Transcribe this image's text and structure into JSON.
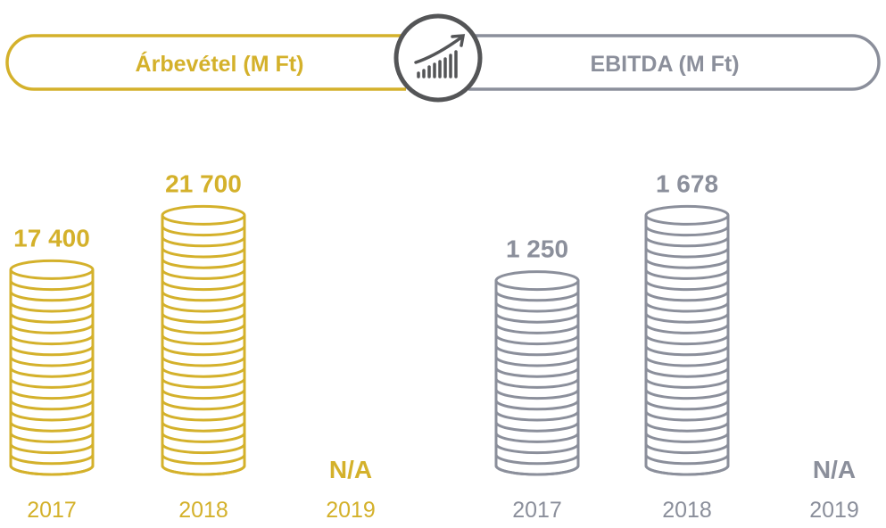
{
  "colors": {
    "revenue": "#d4b12b",
    "ebitda": "#8b8f9b",
    "icon": "#545557",
    "background": "#ffffff"
  },
  "header": {
    "revenue_label": "Árbevétel (M Ft)",
    "ebitda_label": "EBITDA (M Ft)",
    "center_icon": "growth-chart-icon"
  },
  "chart_data": [
    {
      "type": "bar",
      "title": "Árbevétel (M Ft)",
      "categories": [
        "2017",
        "2018",
        "2019"
      ],
      "values": [
        17400,
        21700,
        null
      ],
      "value_labels": [
        "17 400",
        "21 700",
        "N/A"
      ],
      "color": "revenue",
      "style": "coin-stack"
    },
    {
      "type": "bar",
      "title": "EBITDA (M Ft)",
      "categories": [
        "2017",
        "2018",
        "2019"
      ],
      "values": [
        1250,
        1678,
        null
      ],
      "value_labels": [
        "1 250",
        "1 678",
        "N/A"
      ],
      "color": "ebitda",
      "style": "coin-stack"
    }
  ]
}
